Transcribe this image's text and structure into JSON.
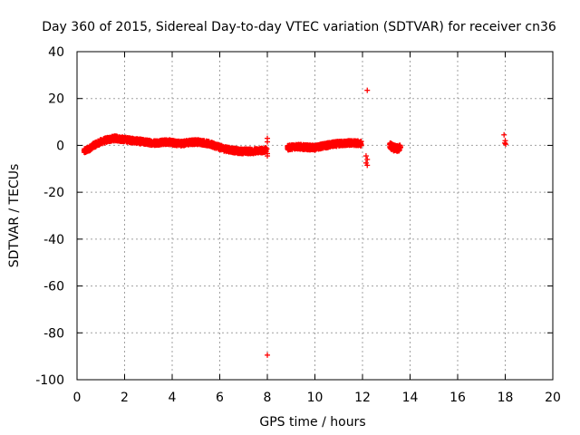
{
  "chart_data": {
    "type": "scatter",
    "title": "Day 360 of 2015, Sidereal Day-to-day VTEC variation (SDTVAR) for receiver cn36",
    "xlabel": "GPS time / hours",
    "ylabel": "SDTVAR / TECUs",
    "xlim": [
      0,
      20
    ],
    "ylim": [
      -100,
      40
    ],
    "xticks": [
      0,
      2,
      4,
      6,
      8,
      10,
      12,
      14,
      16,
      18,
      20
    ],
    "yticks": [
      40,
      20,
      0,
      -20,
      -40,
      -60,
      -80,
      -100
    ],
    "grid": true,
    "marker": "plus",
    "color": "#ff0000",
    "series": [
      {
        "name": "SDTVAR",
        "dense_segments": [
          {
            "x": [
              0.3,
              0.5,
              0.7,
              1.0,
              1.3,
              1.6,
              2.0,
              2.4,
              2.8,
              3.2,
              3.5,
              3.8,
              4.1,
              4.4,
              4.7,
              5.0,
              5.3,
              5.6,
              5.9,
              6.2,
              6.5,
              6.8,
              7.1,
              7.4,
              7.7,
              7.95
            ],
            "y": [
              -2.5,
              -1.5,
              0,
              1.5,
              2.5,
              3,
              2.5,
              2,
              1.5,
              1,
              1.2,
              1.5,
              1,
              0.8,
              1.2,
              1.5,
              1.2,
              0.5,
              -0.5,
              -1.5,
              -2,
              -2.5,
              -2.5,
              -2.5,
              -2.2,
              -2
            ],
            "spread": 2.0
          },
          {
            "x": [
              8.85,
              9.2,
              9.6,
              10.0,
              10.2,
              10.5,
              10.8,
              11.1,
              11.4,
              11.7,
              11.95
            ],
            "y": [
              -1,
              -0.5,
              -0.8,
              -1,
              -0.5,
              0,
              0.5,
              0.8,
              1,
              1,
              0.8
            ],
            "spread": 2.0
          },
          {
            "x": [
              13.15,
              13.3,
              13.45,
              13.6
            ],
            "y": [
              0,
              -1,
              -1.5,
              -1
            ],
            "spread": 2.5
          }
        ],
        "points": [
          {
            "x": 8.0,
            "y": 3
          },
          {
            "x": 8.0,
            "y": 1.5
          },
          {
            "x": 7.98,
            "y": -1.5
          },
          {
            "x": 8.0,
            "y": -3.5
          },
          {
            "x": 8.0,
            "y": -4.5
          },
          {
            "x": 8.0,
            "y": -89.5
          },
          {
            "x": 12.2,
            "y": 23.5
          },
          {
            "x": 12.15,
            "y": -4.5
          },
          {
            "x": 12.2,
            "y": -6
          },
          {
            "x": 12.15,
            "y": -7.5
          },
          {
            "x": 12.2,
            "y": -8.5
          },
          {
            "x": 17.95,
            "y": 4.5
          },
          {
            "x": 18.0,
            "y": 2
          },
          {
            "x": 17.98,
            "y": 1
          },
          {
            "x": 18.02,
            "y": 0.5
          }
        ]
      }
    ]
  }
}
